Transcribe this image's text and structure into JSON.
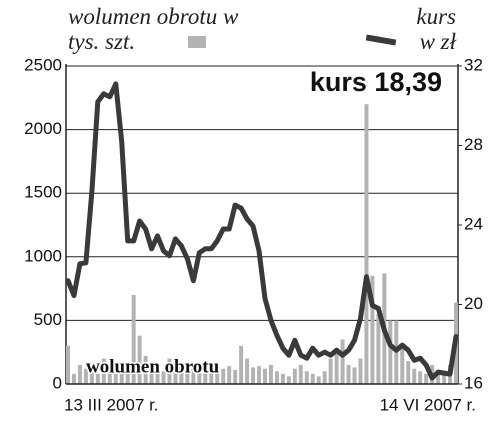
{
  "chart_data": {
    "type": "bar-line",
    "annotations": [
      "kurs 18,39",
      "wolumen obrotu"
    ],
    "categories": [
      "13 III 2007 r.",
      null,
      null,
      null,
      null,
      null,
      null,
      null,
      null,
      null,
      null,
      null,
      null,
      null,
      null,
      null,
      null,
      null,
      null,
      null,
      null,
      null,
      null,
      null,
      null,
      null,
      null,
      null,
      null,
      null,
      null,
      null,
      null,
      null,
      null,
      null,
      null,
      null,
      null,
      null,
      null,
      null,
      null,
      null,
      null,
      null,
      null,
      null,
      null,
      null,
      null,
      null,
      null,
      null,
      null,
      null,
      null,
      null,
      null,
      null,
      null,
      null,
      null,
      null,
      null,
      "14 VI 2007 r."
    ],
    "series": [
      {
        "name": "wolumen obrotu w tys. szt.",
        "type": "bar",
        "color": "#b3b3b3",
        "values": [
          300,
          80,
          150,
          120,
          100,
          80,
          200,
          120,
          160,
          100,
          100,
          700,
          380,
          220,
          150,
          120,
          100,
          200,
          160,
          140,
          100,
          120,
          110,
          120,
          130,
          100,
          120,
          140,
          110,
          300,
          200,
          130,
          140,
          120,
          150,
          100,
          80,
          60,
          120,
          150,
          100,
          80,
          60,
          100,
          200,
          250,
          350,
          150,
          130,
          200,
          2200,
          850,
          550,
          870,
          500,
          500,
          300,
          180,
          120,
          100,
          80,
          150,
          100,
          80,
          150,
          640
        ]
      },
      {
        "name": "kurs w zł",
        "type": "line",
        "axis": "y2",
        "color": "#3a3a3a",
        "values": [
          21.2,
          20.45,
          22.05,
          22.1,
          25.7,
          30.2,
          30.6,
          30.45,
          31.1,
          28.2,
          23.2,
          23.2,
          24.2,
          23.8,
          22.8,
          23.45,
          22.7,
          22.45,
          23.3,
          22.95,
          22.3,
          21.2,
          22.6,
          22.8,
          22.8,
          23.2,
          23.8,
          23.8,
          25.0,
          24.85,
          24.3,
          23.95,
          22.7,
          20.3,
          19.2,
          18.45,
          17.8,
          17.45,
          18.2,
          17.45,
          17.3,
          17.8,
          17.45,
          17.6,
          17.45,
          17.7,
          17.45,
          17.7,
          18.2,
          19.3,
          21.4,
          19.95,
          19.8,
          18.7,
          17.95,
          17.7,
          17.95,
          17.7,
          17.2,
          17.3,
          16.95,
          16.3,
          16.6,
          16.55,
          16.5,
          18.39
        ]
      }
    ],
    "ylim": [
      0,
      2500
    ],
    "yticks": [
      0,
      500,
      1000,
      1500,
      2000,
      2500
    ],
    "y2lim": [
      16,
      32
    ],
    "y2ticks": [
      16,
      20,
      24,
      28,
      32
    ],
    "grid": true
  }
}
